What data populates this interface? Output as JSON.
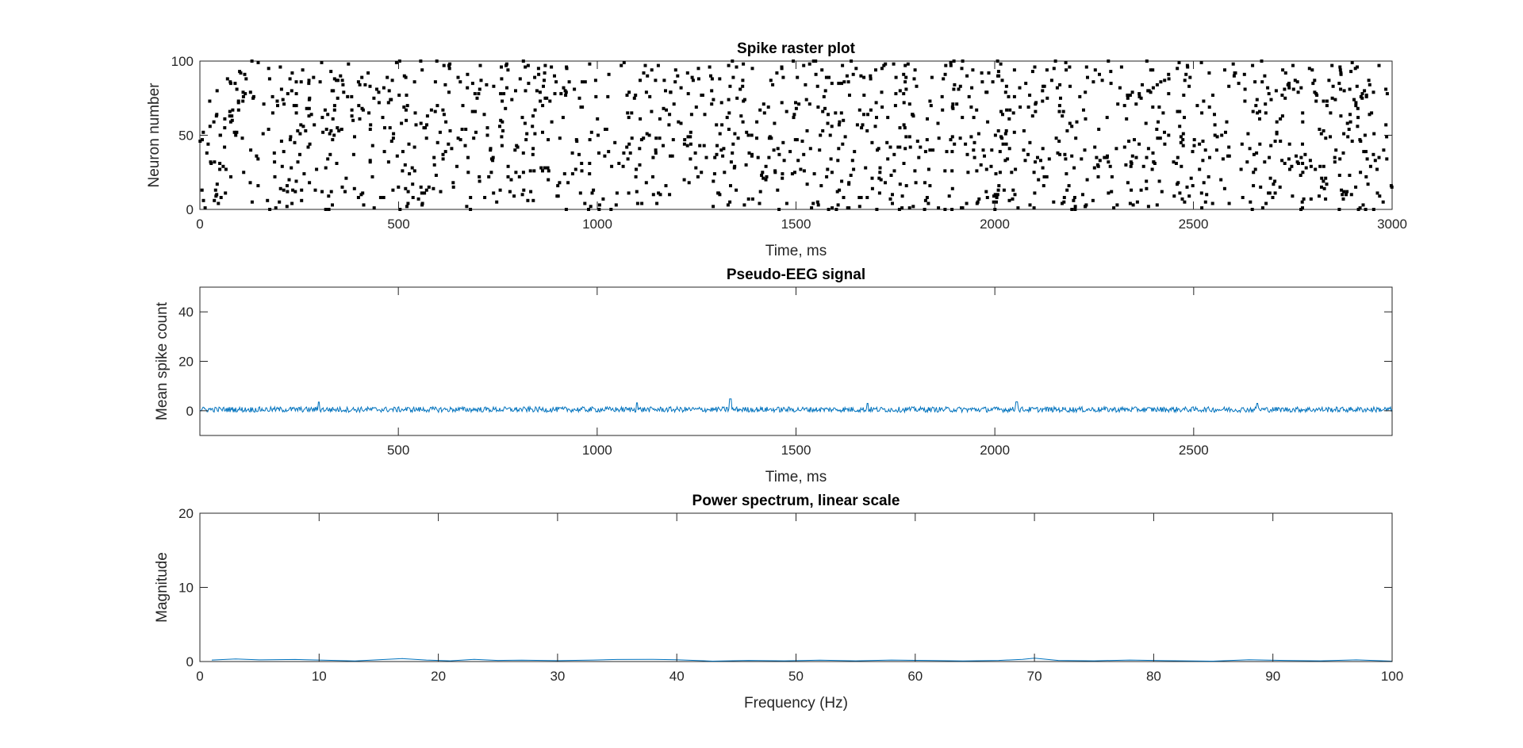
{
  "colors": {
    "raster_marker": "#000000",
    "eeg_line": "#0072BD",
    "spectrum_line": "#0072BD",
    "axes": "#262626"
  },
  "chart_data": [
    {
      "type": "scatter",
      "title": "Spike raster plot",
      "xlabel": "Time, ms",
      "ylabel": "Neuron number",
      "xlim": [
        0,
        3000
      ],
      "ylim": [
        0,
        100
      ],
      "xticks": [
        0,
        500,
        1000,
        1500,
        2000,
        2500,
        3000
      ],
      "yticks": [
        0,
        50,
        100
      ],
      "grid": false,
      "marker": "square",
      "spike_count": 1500,
      "note_points": "spikes distributed approximately uniformly across neurons 0-100 and time 0-3000 ms"
    },
    {
      "type": "line",
      "title": "Pseudo-EEG signal",
      "xlabel": "Time, ms",
      "ylabel": "Mean spike count",
      "xlim": [
        1,
        2999
      ],
      "ylim": [
        -10,
        50
      ],
      "xticks": [
        500,
        1000,
        1500,
        2000,
        2500
      ],
      "yticks": [
        0,
        20,
        40
      ],
      "grid": false,
      "baseline": 0.5,
      "peaks": [
        {
          "x": 300,
          "y": 3.5
        },
        {
          "x": 1100,
          "y": 3.2
        },
        {
          "x": 1335,
          "y": 4.8
        },
        {
          "x": 1680,
          "y": 3.0
        },
        {
          "x": 2055,
          "y": 3.6
        },
        {
          "x": 2660,
          "y": 3.0
        }
      ]
    },
    {
      "type": "line",
      "title": "Power spectrum, linear scale",
      "xlabel": "Frequency (Hz)",
      "ylabel": "Magnitude",
      "xlim": [
        0,
        100
      ],
      "ylim": [
        0,
        20
      ],
      "xticks": [
        0,
        10,
        20,
        30,
        40,
        50,
        60,
        70,
        80,
        90,
        100
      ],
      "yticks": [
        0,
        10,
        20
      ],
      "grid": false,
      "x": [
        1,
        3,
        5,
        8,
        10,
        13,
        15,
        17,
        19,
        21,
        23,
        25,
        27,
        30,
        33,
        35,
        38,
        40,
        43,
        46,
        49,
        52,
        55,
        58,
        61,
        64,
        67,
        69,
        70,
        72,
        75,
        78,
        81,
        85,
        88,
        91,
        94,
        97,
        100
      ],
      "y": [
        0.2,
        0.35,
        0.22,
        0.28,
        0.2,
        0.08,
        0.25,
        0.4,
        0.2,
        0.1,
        0.3,
        0.15,
        0.18,
        0.12,
        0.2,
        0.28,
        0.3,
        0.25,
        0.05,
        0.15,
        0.1,
        0.18,
        0.1,
        0.2,
        0.15,
        0.08,
        0.15,
        0.3,
        0.45,
        0.15,
        0.1,
        0.2,
        0.12,
        0.05,
        0.25,
        0.15,
        0.1,
        0.22,
        0.05
      ]
    }
  ]
}
